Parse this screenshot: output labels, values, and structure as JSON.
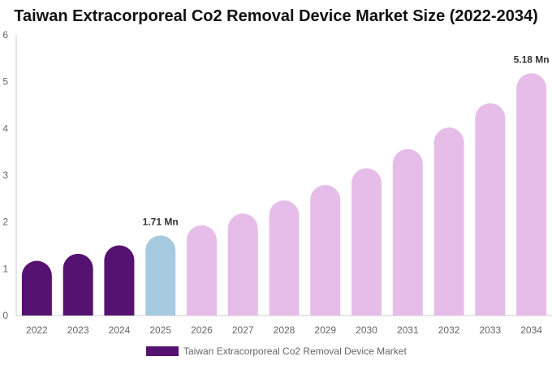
{
  "chart_data": {
    "type": "bar",
    "title": "Taiwan Extracorporeal Co2 Removal Device Market Size (2022-2034)",
    "xlabel": "",
    "ylabel": "",
    "categories": [
      "2022",
      "2023",
      "2024",
      "2025",
      "2026",
      "2027",
      "2028",
      "2029",
      "2030",
      "2031",
      "2032",
      "2033",
      "2034"
    ],
    "series": [
      {
        "name": "Taiwan Extracorporeal Co2 Removal Device Market",
        "values": [
          1.17,
          1.32,
          1.5,
          1.71,
          1.93,
          2.18,
          2.46,
          2.79,
          3.15,
          3.56,
          4.02,
          4.54,
          5.18
        ]
      }
    ],
    "ylim": [
      0,
      6
    ],
    "yticks": [
      "0",
      "1",
      "2",
      "3",
      "4",
      "5",
      "6"
    ],
    "grid": false,
    "legend_position": "bottom",
    "data_labels": [
      {
        "index": 3,
        "text": "1.71 Mn"
      },
      {
        "index": 12,
        "text": "5.18 Mn"
      }
    ],
    "colors": {
      "historical": "#561270",
      "base_year": "#a6cadf",
      "forecast": "#e6bde9",
      "axis": "#cccccc",
      "tick_text": "#666666",
      "label_text": "#333333"
    },
    "bar_color_groups": [
      "historical",
      "historical",
      "historical",
      "base_year",
      "forecast",
      "forecast",
      "forecast",
      "forecast",
      "forecast",
      "forecast",
      "forecast",
      "forecast",
      "forecast"
    ]
  }
}
